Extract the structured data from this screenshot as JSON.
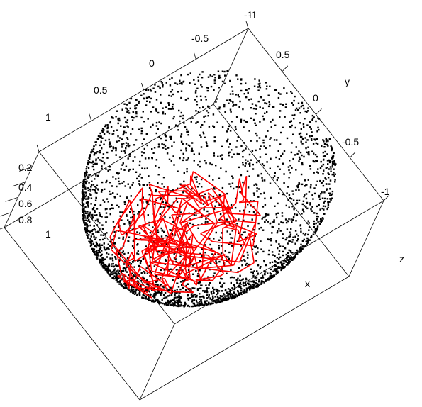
{
  "chart_data": {
    "type": "scatter",
    "subtype": "3d-scatter-with-path",
    "title": "",
    "axes": {
      "x": {
        "label": "x",
        "range": [
          -1,
          1
        ],
        "ticks": [
          "-1",
          "-0.5",
          "0",
          "0.5",
          "1"
        ]
      },
      "y": {
        "label": "y",
        "range": [
          -1,
          1
        ],
        "ticks": [
          "-1",
          "-0.5",
          "0",
          "0.5"
        ]
      },
      "z": {
        "label": "z",
        "range": [
          0,
          1
        ],
        "ticks": [
          "0.2",
          "0.4",
          "0.6",
          "0.8",
          "1"
        ]
      }
    },
    "series": [
      {
        "kind": "points",
        "color": "#000000",
        "description": "points sampled on a hemisphere (x^2 + y^2 + z^2 = 1, z >= 0)",
        "count": 3000
      },
      {
        "kind": "path",
        "color": "#ff0000",
        "count": 220
      }
    ],
    "grid": false,
    "legend": "none"
  }
}
